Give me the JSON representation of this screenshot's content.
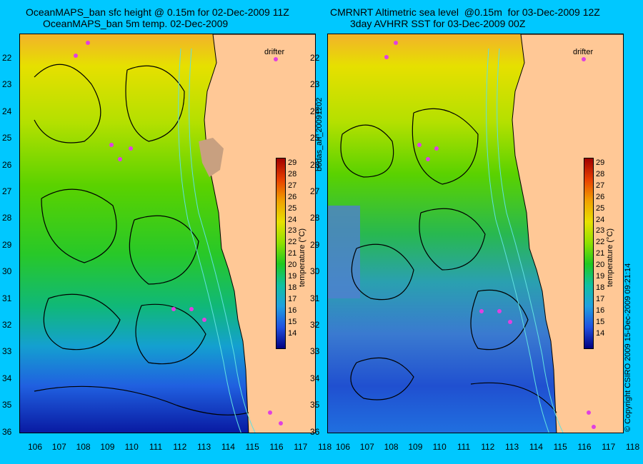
{
  "left": {
    "title1": "OceanMAPS_ban sfc height @ 0.15m for 02-Dec-2009 11Z",
    "title2": "OceanMAPS_ban 5m temp. 02-Dec-2009",
    "drifter_label": "drifter",
    "colorbar_title": "temperature (°C)"
  },
  "right": {
    "title1": "CMRNRT Altimetric sea level  @0.15m  for 03-Dec-2009 12Z",
    "title2": "3day AVHRR SST for 03-Dec-2009 00Z",
    "drifter_label": "drifter",
    "colorbar_title": "temperature (°C)"
  },
  "center_vertical_text": "bodas_an_20091202",
  "right_vertical_text": "© Copyright CSIRO 2009   15-Dec-2009 09:21:14",
  "latitudes": [
    "22",
    "23",
    "24",
    "25",
    "26",
    "27",
    "28",
    "29",
    "30",
    "31",
    "32",
    "33",
    "34",
    "35",
    "36"
  ],
  "longitudes": [
    "106",
    "107",
    "108",
    "109",
    "110",
    "111",
    "112",
    "113",
    "114",
    "115",
    "116",
    "117",
    "118"
  ],
  "colorbar_ticks": [
    "29",
    "28",
    "27",
    "26",
    "25",
    "24",
    "23",
    "22",
    "21",
    "20",
    "19",
    "18",
    "17",
    "16",
    "15",
    "14"
  ],
  "colors": {
    "background": "#00c8ff",
    "land": "#ffc896",
    "drifter": "#e040e0"
  }
}
